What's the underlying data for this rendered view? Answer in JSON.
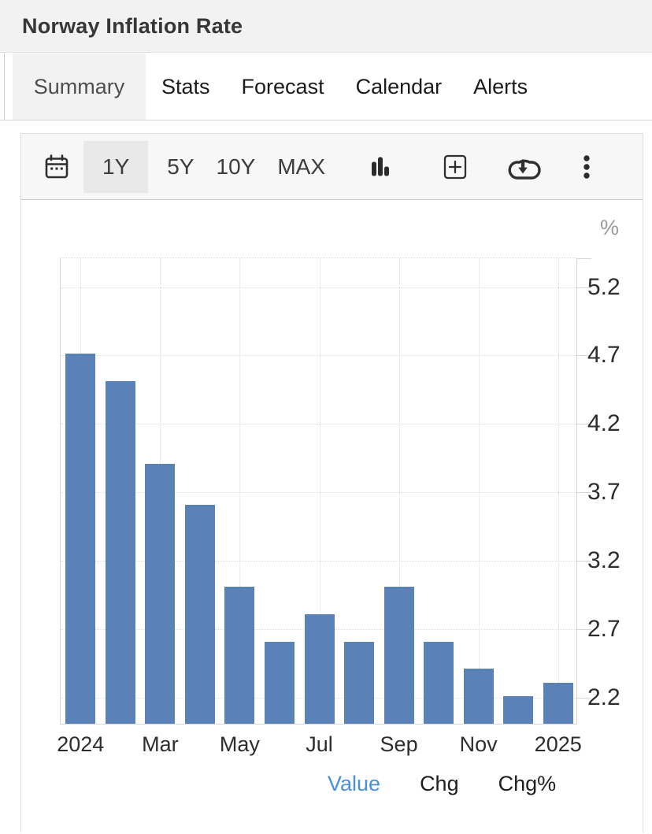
{
  "header": {
    "title": "Norway Inflation Rate"
  },
  "tabs": {
    "items": [
      {
        "label": "Summary",
        "active": true
      },
      {
        "label": "Stats",
        "active": false
      },
      {
        "label": "Forecast",
        "active": false
      },
      {
        "label": "Calendar",
        "active": false
      },
      {
        "label": "Alerts",
        "active": false
      }
    ]
  },
  "toolbar": {
    "icons": [
      "calendar-icon",
      "column-chart-icon",
      "add-panel-icon",
      "cloud-download-icon",
      "kebab-menu-icon"
    ],
    "ranges": [
      {
        "label": "1Y",
        "active": true
      },
      {
        "label": "5Y",
        "active": false
      },
      {
        "label": "10Y",
        "active": false
      },
      {
        "label": "MAX",
        "active": false
      }
    ]
  },
  "chart_data": {
    "type": "bar",
    "title": "Norway Inflation Rate",
    "unit": "%",
    "values": [
      4.7,
      4.5,
      3.9,
      3.6,
      3.0,
      2.6,
      2.8,
      2.6,
      3.0,
      2.6,
      2.4,
      2.2,
      2.3
    ],
    "x_tick_labels": [
      "2024",
      "Mar",
      "May",
      "Jul",
      "Sep",
      "Nov",
      "2025"
    ],
    "x_tick_indices": [
      0,
      2,
      4,
      6,
      8,
      10,
      12
    ],
    "y_ticks": [
      2.2,
      2.7,
      3.2,
      3.7,
      4.2,
      4.7,
      5.2
    ],
    "ylim": [
      2.0,
      5.41
    ],
    "bar_color": "#5a81b8",
    "grid": "dotted",
    "y_axis_side": "right",
    "legend_position": "bottom"
  },
  "legend": {
    "active_color": "#4a8fdc",
    "items": [
      {
        "label": "Value",
        "active": true
      },
      {
        "label": "Chg",
        "active": false
      },
      {
        "label": "Chg%",
        "active": false
      }
    ]
  }
}
